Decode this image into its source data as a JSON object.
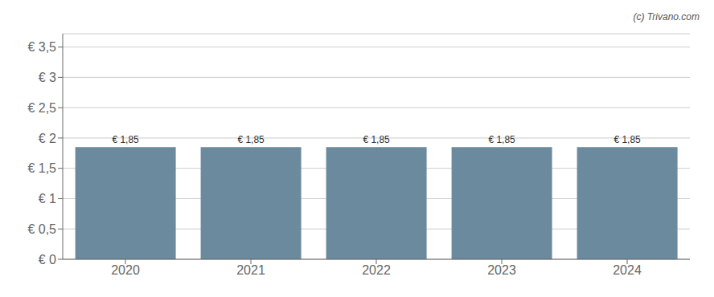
{
  "chart_data": {
    "type": "bar",
    "categories": [
      "2020",
      "2021",
      "2022",
      "2023",
      "2024"
    ],
    "values": [
      1.85,
      1.85,
      1.85,
      1.85,
      1.85
    ],
    "value_labels": [
      "€ 1,85",
      "€ 1,85",
      "€ 1,85",
      "€ 1,85",
      "€ 1,85"
    ],
    "data_labels": true,
    "color": "#6b8a9e",
    "ylim": [
      0,
      3.72
    ],
    "yticks": [
      {
        "value": 0,
        "label": "€ 0"
      },
      {
        "value": 0.5,
        "label": "€ 0,5"
      },
      {
        "value": 1.0,
        "label": "€ 1"
      },
      {
        "value": 1.5,
        "label": "€ 1,5"
      },
      {
        "value": 2.0,
        "label": "€ 2"
      },
      {
        "value": 2.5,
        "label": "€ 2,5"
      },
      {
        "value": 3.0,
        "label": "€ 3"
      },
      {
        "value": 3.5,
        "label": "€ 3,5"
      }
    ],
    "grid": true,
    "annotations": [
      "(c) Trivano.com"
    ]
  }
}
